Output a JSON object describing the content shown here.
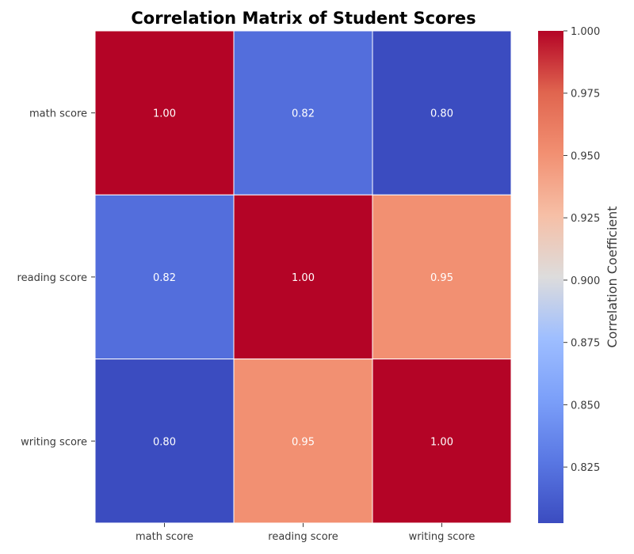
{
  "chart_data": {
    "type": "heatmap",
    "title": "Correlation Matrix of Student Scores",
    "row_labels": [
      "math score",
      "reading score",
      "writing score"
    ],
    "col_labels": [
      "math score",
      "reading score",
      "writing score"
    ],
    "values": [
      [
        1.0,
        0.82,
        0.8
      ],
      [
        0.82,
        1.0,
        0.95
      ],
      [
        0.8,
        0.95,
        1.0
      ]
    ],
    "value_format": "2 decimals",
    "colormap": "coolwarm",
    "colorbar": {
      "label": "Correlation Coefficient",
      "range": [
        0.8,
        1.0
      ],
      "ticks": [
        "0.825",
        "0.850",
        "0.875",
        "0.900",
        "0.925",
        "0.950",
        "0.975",
        "1.000"
      ]
    },
    "grid_lines_color": "#ffffff"
  }
}
